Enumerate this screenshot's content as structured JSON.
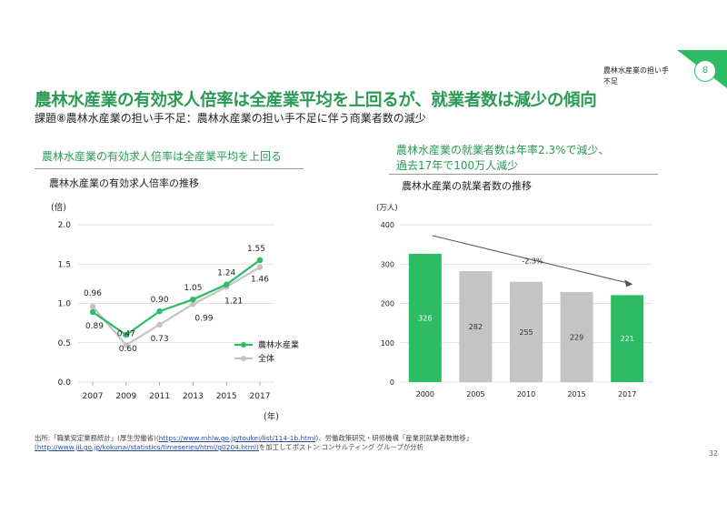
{
  "header": {
    "tag_label": "農林水産業の担い手不足",
    "badge_number": "8",
    "title": "農林水産業の有効求人倍率は全産業平均を上回るが、就業者数は減少の傾向",
    "subtitle": "課題⑧農林水産業の担い手不足：農林水産業の担い手不足に伴う商業者数の減少"
  },
  "left": {
    "heading": "農林水産業の有効求人倍率は全産業平均を上回る",
    "subheading": "農林水産業の有効求人倍率の推移"
  },
  "right": {
    "heading_line1": "農林水産業の就業者数は年率2.3%で減少、",
    "heading_line2": "過去17年で100万人減少",
    "subheading": "農林水産業の就業者数の推移"
  },
  "footer": {
    "source_prefix": "出所:「職業安定業務統計」(厚生労働省)(",
    "source_link1": "https://www.mhlw.go.jp/toukei/list/114-1b.html",
    "source_mid": ")、労働政策研究・研修機構「産業別就業者数推移」",
    "source_link2": "(http://www.jil.go.jp/kokunai/statistics/timeseries/html/g0204.html)",
    "source_suffix": "を加工してボストン コンサルティング グループが分析",
    "page_number": "32"
  },
  "colors": {
    "green": "#2dbb63",
    "gray": "#c4c4c4",
    "title_green": "#2a9a55"
  },
  "chart_data": [
    {
      "type": "line",
      "ylabel": "(倍)",
      "xlabel": "(年)",
      "x": [
        "2007",
        "2009",
        "2011",
        "2013",
        "2015",
        "2017"
      ],
      "ylim": [
        0,
        2.0
      ],
      "yticks": [
        "0.0",
        "0.5",
        "1.0",
        "1.5",
        "2.0"
      ],
      "legend_position": "bottom-right",
      "series": [
        {
          "name": "農林水産業",
          "color": "#2dbb63",
          "values": [
            0.89,
            0.6,
            0.9,
            1.05,
            1.24,
            1.55
          ]
        },
        {
          "name": "全体",
          "color": "#c4c4c4",
          "values": [
            0.96,
            0.47,
            0.73,
            0.99,
            1.21,
            1.46
          ]
        }
      ],
      "labels": {
        "農林水産業": [
          "0.89",
          "0.60",
          "0.90",
          "1.05",
          "1.24",
          "1.55"
        ],
        "全体": [
          "0.96",
          "0.47",
          "0.73",
          "0.99",
          "1.21",
          "1.46"
        ]
      }
    },
    {
      "type": "bar",
      "ylabel": "(万人)",
      "categories": [
        "2000",
        "2005",
        "2010",
        "2015",
        "2017"
      ],
      "values": [
        326,
        282,
        255,
        229,
        221
      ],
      "bar_colors": [
        "#2dbb63",
        "#c4c4c4",
        "#c4c4c4",
        "#c4c4c4",
        "#2dbb63"
      ],
      "label_colors": [
        "#ffffff",
        "#333333",
        "#333333",
        "#333333",
        "#ffffff"
      ],
      "ylim": [
        0,
        400
      ],
      "yticks": [
        "0",
        "100",
        "200",
        "300",
        "400"
      ],
      "annotation": "-2.3%"
    }
  ]
}
